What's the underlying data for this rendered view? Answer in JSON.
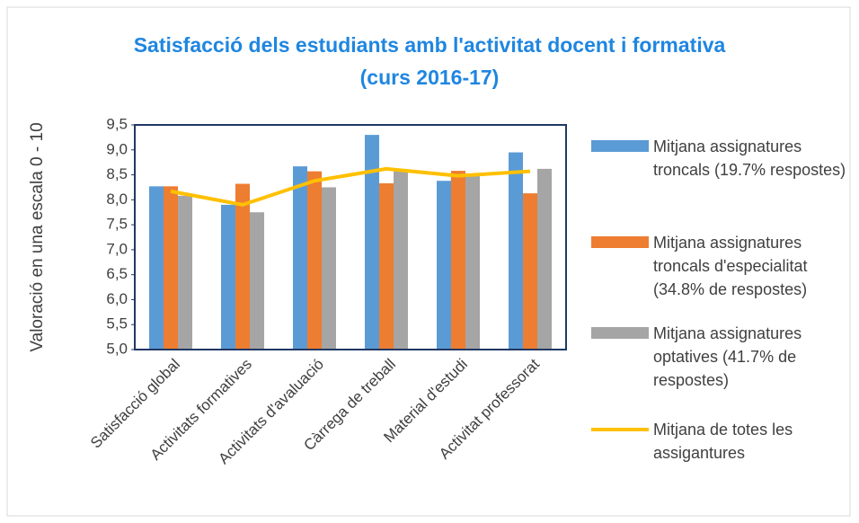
{
  "chart_data": {
    "type": "bar",
    "title": [
      "Satisfacció dels estudiants amb l'activitat docent i formativa",
      "(curs 2016-17)"
    ],
    "y_label": "Valoració en una escala 0 - 10",
    "categories": [
      "Satisfacció global",
      "Activitats formatives",
      "Activitats d'avaluació",
      "Càrrega de treball",
      "Material d'estudi",
      "Activitat professorat"
    ],
    "series": [
      {
        "name": "Mitjana assignatures troncals (19.7% respostes)",
        "color": "#5b9bd5",
        "values": [
          8.27,
          7.9,
          8.67,
          9.3,
          8.38,
          8.95
        ]
      },
      {
        "name": "Mitjana assignatures troncals d'especialitat (34.8%  de respostes)",
        "color": "#ed7d31",
        "values": [
          8.27,
          8.32,
          8.57,
          8.33,
          8.58,
          8.13
        ]
      },
      {
        "name": "Mitjana assignatures optatives (41.7% de respostes)",
        "color": "#a5a5a5",
        "values": [
          8.08,
          7.75,
          8.25,
          8.57,
          8.48,
          8.62
        ]
      },
      {
        "name": "Mitjana de totes les assigantures",
        "color": "#ffc000",
        "type": "line",
        "values": [
          8.17,
          7.9,
          8.38,
          8.62,
          8.48,
          8.57
        ]
      }
    ],
    "ylim": [
      5.0,
      9.5
    ],
    "yticks": [
      {
        "value": 5.0,
        "label": "5,0"
      },
      {
        "value": 5.5,
        "label": "5,5"
      },
      {
        "value": 6.0,
        "label": "6,0"
      },
      {
        "value": 6.5,
        "label": "6,5"
      },
      {
        "value": 7.0,
        "label": "7,0"
      },
      {
        "value": 7.5,
        "label": "7,5"
      },
      {
        "value": 8.0,
        "label": "8,0"
      },
      {
        "value": 8.5,
        "label": "8,5"
      },
      {
        "value": 9.0,
        "label": "9,0"
      },
      {
        "value": 9.5,
        "label": "9,5"
      }
    ],
    "grid": false,
    "legend": "right"
  }
}
